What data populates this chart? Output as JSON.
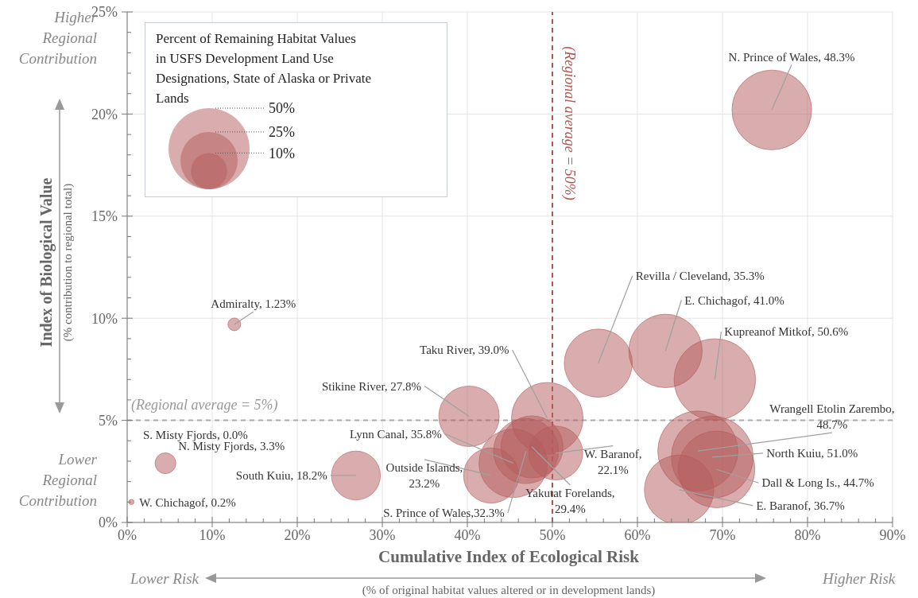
{
  "chart_data": {
    "type": "bubble",
    "xlabel": "Cumulative Index of Ecological Risk",
    "ylabel": "Index of Biological Value",
    "legend_title": "Percent of Remaining Habitat Values\n in USFS Development Land Use\nDesignations, State of Alaska or Private\nLands",
    "legend": "top left",
    "grid": true,
    "color": "#b45c5c",
    "x": [
      75.8,
      55.4,
      63.3,
      69.1,
      67.1,
      68.8,
      69.3,
      64.9,
      49.4,
      40.2,
      45.4,
      42.8,
      46.9,
      47.6,
      50.4,
      26.9,
      4.5,
      12.6,
      0.5
    ],
    "values": [
      20.2,
      7.8,
      8.4,
      7.0,
      3.5,
      3.2,
      2.6,
      1.6,
      5.1,
      5.2,
      2.9,
      2.3,
      3.5,
      3.7,
      3.4,
      2.3,
      2.9,
      9.7,
      1.0
    ],
    "sizes": [
      48.3,
      35.3,
      41.0,
      50.6,
      48.7,
      51.0,
      44.7,
      36.7,
      39.0,
      27.8,
      35.8,
      23.2,
      32.3,
      29.4,
      22.1,
      18.2,
      3.3,
      1.23,
      0.2
    ],
    "size_legend": [
      {
        "value": 50,
        "label": "50%"
      },
      {
        "value": 25,
        "label": "25%"
      },
      {
        "value": 10,
        "label": "10%"
      }
    ],
    "xlim": [
      0,
      90
    ],
    "ylim": [
      0,
      25
    ],
    "xticks": [
      {
        "value": 0,
        "label": "0%"
      },
      {
        "value": 2,
        "label": null
      },
      {
        "value": 4,
        "label": null
      },
      {
        "value": 6,
        "label": null
      },
      {
        "value": 8,
        "label": null
      },
      {
        "value": 10,
        "label": "10%"
      },
      {
        "value": 12,
        "label": null
      },
      {
        "value": 14,
        "label": null
      },
      {
        "value": 16,
        "label": null
      },
      {
        "value": 18,
        "label": null
      },
      {
        "value": 20,
        "label": "20%"
      },
      {
        "value": 22,
        "label": null
      },
      {
        "value": 24,
        "label": null
      },
      {
        "value": 26,
        "label": null
      },
      {
        "value": 28,
        "label": null
      },
      {
        "value": 30,
        "label": "30%"
      },
      {
        "value": 32,
        "label": null
      },
      {
        "value": 34,
        "label": null
      },
      {
        "value": 36,
        "label": null
      },
      {
        "value": 38,
        "label": null
      },
      {
        "value": 40,
        "label": "40%"
      },
      {
        "value": 42,
        "label": null
      },
      {
        "value": 44,
        "label": null
      },
      {
        "value": 46,
        "label": null
      },
      {
        "value": 48,
        "label": null
      },
      {
        "value": 50,
        "label": "50%"
      },
      {
        "value": 52,
        "label": null
      },
      {
        "value": 54,
        "label": null
      },
      {
        "value": 56,
        "label": null
      },
      {
        "value": 58,
        "label": null
      },
      {
        "value": 60,
        "label": "60%"
      },
      {
        "value": 62,
        "label": null
      },
      {
        "value": 64,
        "label": null
      },
      {
        "value": 66,
        "label": null
      },
      {
        "value": 68,
        "label": null
      },
      {
        "value": 70,
        "label": "70%"
      },
      {
        "value": 72,
        "label": null
      },
      {
        "value": 74,
        "label": null
      },
      {
        "value": 76,
        "label": null
      },
      {
        "value": 78,
        "label": null
      },
      {
        "value": 80,
        "label": "80%"
      },
      {
        "value": 82,
        "label": null
      },
      {
        "value": 84,
        "label": null
      },
      {
        "value": 86,
        "label": null
      },
      {
        "value": 88,
        "label": null
      },
      {
        "value": 90,
        "label": "90%"
      }
    ],
    "yticks": [
      {
        "value": 0,
        "label": "0%"
      },
      {
        "value": 1,
        "label": null
      },
      {
        "value": 2,
        "label": null
      },
      {
        "value": 3,
        "label": null
      },
      {
        "value": 4,
        "label": null
      },
      {
        "value": 5,
        "label": "5%"
      },
      {
        "value": 6,
        "label": null
      },
      {
        "value": 7,
        "label": null
      },
      {
        "value": 8,
        "label": null
      },
      {
        "value": 9,
        "label": null
      },
      {
        "value": 10,
        "label": "10%"
      },
      {
        "value": 11,
        "label": null
      },
      {
        "value": 12,
        "label": null
      },
      {
        "value": 13,
        "label": null
      },
      {
        "value": 14,
        "label": null
      },
      {
        "value": 15,
        "label": "15%"
      },
      {
        "value": 16,
        "label": null
      },
      {
        "value": 17,
        "label": null
      },
      {
        "value": 18,
        "label": null
      },
      {
        "value": 19,
        "label": null
      },
      {
        "value": 20,
        "label": "20%"
      },
      {
        "value": 21,
        "label": null
      },
      {
        "value": 22,
        "label": null
      },
      {
        "value": 23,
        "label": null
      },
      {
        "value": 24,
        "label": null
      },
      {
        "value": 25,
        "label": "25%"
      }
    ],
    "ref_lines": [
      {
        "axis": "x",
        "value": 50,
        "label": "(Regional average = 50%)",
        "color": "#b5544f",
        "line_style": "dashed"
      },
      {
        "axis": "y",
        "value": 5,
        "label": "(Regional average = 5%)",
        "color": "#aaaaaa",
        "line_style": "dashed"
      }
    ],
    "annotations": [
      {
        "text": "N. Prince of Wales, 48.3%",
        "x": 75.8,
        "y": 20.2
      },
      {
        "text": "Revilla / Cleveland, 35.3%",
        "x": 55.4,
        "y": 7.8
      },
      {
        "text": "E. Chichagof, 41.0%",
        "x": 63.3,
        "y": 8.4
      },
      {
        "text": "Kupreanof Mitkof, 50.6%",
        "x": 69.1,
        "y": 7.0
      },
      {
        "text": "Wrangell Etolin Zarembo, 48.7%",
        "x": 67.1,
        "y": 3.5
      },
      {
        "text": "North Kuiu, 51.0%",
        "x": 68.8,
        "y": 3.2
      },
      {
        "text": "Dall & Long Is., 44.7%",
        "x": 69.3,
        "y": 2.6
      },
      {
        "text": "E. Baranof, 36.7%",
        "x": 64.9,
        "y": 1.6
      },
      {
        "text": "Taku River, 39.0%",
        "x": 49.4,
        "y": 5.1
      },
      {
        "text": "Stikine River, 27.8%",
        "x": 40.2,
        "y": 5.2
      },
      {
        "text": "Lynn Canal, 35.8%",
        "x": 45.4,
        "y": 2.9
      },
      {
        "text": "Outside Islands, 23.2%",
        "x": 42.8,
        "y": 2.3
      },
      {
        "text": "S. Prince of Wales,32.3%",
        "x": 46.9,
        "y": 3.5
      },
      {
        "text": "Yakutat Forelands, 29.4%",
        "x": 47.6,
        "y": 3.7
      },
      {
        "text": "W. Baranof, 22.1%",
        "x": 50.4,
        "y": 3.4
      },
      {
        "text": "South Kuiu, 18.2%",
        "x": 26.9,
        "y": 2.3
      },
      {
        "text": "N. Misty Fjords, 3.3%",
        "x": 4.5,
        "y": 2.9
      },
      {
        "text": "Admiralty, 1.23%",
        "x": 12.6,
        "y": 9.7
      },
      {
        "text": "W. Chichagof, 0.2%",
        "x": 0.5,
        "y": 1.0
      },
      "Higher Regional Contribution",
      "Lower Regional Contribution",
      "Lower Risk",
      "Higher Risk",
      "(% contribution to regional total)",
      "(% of original habitat values altered or in development lands)",
      "S. Misty Fjords, 0.0%"
    ]
  }
}
